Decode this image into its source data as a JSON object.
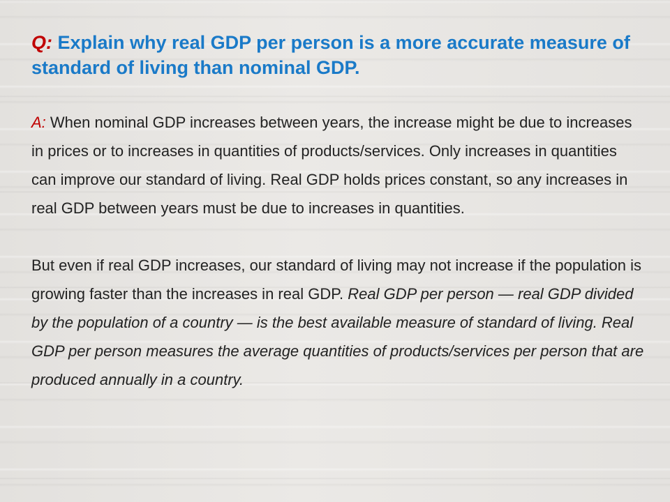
{
  "question": {
    "label": "Q:",
    "text": " Explain why real GDP per person is a more accurate measure of standard of living than nominal GDP."
  },
  "answer": {
    "label": "A:",
    "paragraph1": " When nominal GDP increases between years, the increase might be due to increases in prices or to increases in quantities of products/services. Only increases in quantities can improve our standard of living. Real GDP holds prices constant, so any increases in real GDP between years must be due to increases in quantities.",
    "paragraph2_plain": "But even if real GDP increases, our standard of living may not increase if the population is growing faster than the increases in real GDP. ",
    "paragraph2_italic": "Real GDP per person — real GDP divided by the population of a country — is the best available measure of standard of living. Real GDP per person measures the average quantities of products/services per person that are produced annually in a country."
  },
  "colors": {
    "label_red": "#c00000",
    "question_blue": "#1a7ac8",
    "body_text": "#222222",
    "background": "#e6e4e1"
  }
}
